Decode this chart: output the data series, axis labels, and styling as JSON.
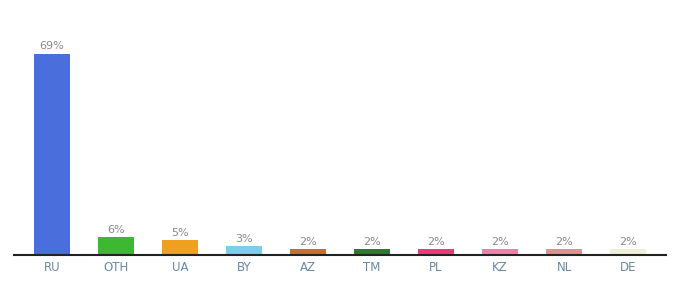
{
  "categories": [
    "RU",
    "OTH",
    "UA",
    "BY",
    "AZ",
    "TM",
    "PL",
    "KZ",
    "NL",
    "DE"
  ],
  "values": [
    69,
    6,
    5,
    3,
    2,
    2,
    2,
    2,
    2,
    2
  ],
  "labels": [
    "69%",
    "6%",
    "5%",
    "3%",
    "2%",
    "2%",
    "2%",
    "2%",
    "2%",
    "2%"
  ],
  "bar_colors": [
    "#4a6fdc",
    "#3cb832",
    "#f0a020",
    "#7dcce8",
    "#c87030",
    "#2a7a30",
    "#f03878",
    "#f080a8",
    "#e09090",
    "#f0f0d8"
  ],
  "ylim": [
    0,
    75
  ],
  "background_color": "#ffffff",
  "label_fontsize": 8,
  "tick_fontsize": 8.5,
  "label_color": "#888888",
  "tick_color": "#6688aa",
  "spine_color": "#222222"
}
